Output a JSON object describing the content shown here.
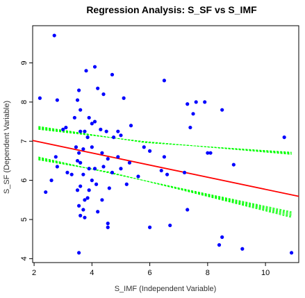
{
  "chart_data": {
    "type": "scatter",
    "title": "Regression Analysis: S_SF vs S_IMF",
    "xlabel": "S_IMF (Independent Variable)",
    "ylabel": "S_SF (Dependent Variable)",
    "xlim": [
      1.95,
      11.15
    ],
    "ylim": [
      3.9,
      9.95
    ],
    "xticks": [
      2,
      4,
      6,
      8,
      10
    ],
    "yticks": [
      4,
      5,
      6,
      7,
      8,
      9
    ],
    "grid": false,
    "colors": {
      "points": "#0000ff",
      "regression": "#ff0000",
      "bands": "#00ff00",
      "axes": "#000000"
    },
    "points": [
      [
        2.7,
        9.7
      ],
      [
        3.8,
        8.8
      ],
      [
        4.1,
        8.9
      ],
      [
        4.4,
        8.2
      ],
      [
        4.7,
        8.7
      ],
      [
        5.1,
        8.1
      ],
      [
        6.5,
        8.55
      ],
      [
        7.6,
        8.0
      ],
      [
        7.3,
        7.95
      ],
      [
        7.4,
        7.35
      ],
      [
        7.5,
        7.7
      ],
      [
        8.5,
        7.8
      ],
      [
        2.2,
        8.1
      ],
      [
        2.8,
        8.05
      ],
      [
        3.55,
        8.3
      ],
      [
        3.5,
        8.05
      ],
      [
        3.6,
        7.8
      ],
      [
        3.9,
        7.6
      ],
      [
        4.0,
        7.45
      ],
      [
        4.2,
        8.35
      ],
      [
        4.1,
        7.5
      ],
      [
        3.4,
        7.6
      ],
      [
        3.6,
        7.25
      ],
      [
        3.0,
        7.3
      ],
      [
        3.1,
        7.35
      ],
      [
        3.75,
        7.25
      ],
      [
        3.85,
        7.1
      ],
      [
        4.3,
        7.3
      ],
      [
        4.5,
        7.25
      ],
      [
        4.75,
        7.1
      ],
      [
        4.9,
        7.25
      ],
      [
        5.0,
        7.15
      ],
      [
        5.35,
        7.4
      ],
      [
        5.8,
        6.85
      ],
      [
        6.0,
        6.75
      ],
      [
        6.5,
        6.6
      ],
      [
        2.75,
        6.6
      ],
      [
        3.45,
        6.85
      ],
      [
        3.55,
        6.7
      ],
      [
        3.7,
        6.8
      ],
      [
        4.0,
        6.85
      ],
      [
        4.35,
        6.7
      ],
      [
        4.55,
        6.55
      ],
      [
        4.9,
        6.6
      ],
      [
        3.5,
        6.5
      ],
      [
        3.6,
        6.45
      ],
      [
        3.9,
        6.3
      ],
      [
        4.1,
        6.3
      ],
      [
        4.4,
        6.35
      ],
      [
        4.7,
        6.2
      ],
      [
        5.0,
        6.3
      ],
      [
        5.3,
        6.45
      ],
      [
        5.6,
        6.1
      ],
      [
        6.4,
        6.25
      ],
      [
        6.6,
        6.15
      ],
      [
        7.2,
        6.2
      ],
      [
        2.8,
        6.35
      ],
      [
        3.15,
        6.2
      ],
      [
        3.3,
        6.15
      ],
      [
        3.7,
        6.15
      ],
      [
        4.0,
        6.0
      ],
      [
        2.6,
        6.0
      ],
      [
        3.9,
        5.75
      ],
      [
        4.15,
        5.9
      ],
      [
        4.6,
        5.8
      ],
      [
        5.2,
        5.9
      ],
      [
        3.5,
        5.75
      ],
      [
        3.6,
        5.85
      ],
      [
        3.75,
        5.5
      ],
      [
        4.35,
        5.5
      ],
      [
        2.4,
        5.7
      ],
      [
        3.55,
        5.35
      ],
      [
        3.7,
        5.25
      ],
      [
        3.6,
        5.1
      ],
      [
        3.75,
        5.05
      ],
      [
        3.85,
        5.55
      ],
      [
        4.2,
        5.2
      ],
      [
        4.55,
        4.9
      ],
      [
        4.55,
        4.8
      ],
      [
        6.0,
        4.8
      ],
      [
        6.7,
        4.85
      ],
      [
        7.3,
        5.25
      ],
      [
        8.0,
        6.7
      ],
      [
        8.1,
        6.7
      ],
      [
        8.9,
        6.4
      ],
      [
        8.5,
        4.55
      ],
      [
        8.4,
        4.35
      ],
      [
        3.55,
        4.15
      ],
      [
        9.2,
        4.25
      ],
      [
        10.9,
        4.15
      ],
      [
        10.65,
        7.1
      ],
      [
        7.9,
        8.0
      ]
    ],
    "regression_line": {
      "intercept": 7.32,
      "slope": -0.155
    },
    "bands": {
      "upper": {
        "lines": 8,
        "y_at_xmin": [
          7.38,
          7.3
        ],
        "y_at_converge": 6.98,
        "converge_x": 5.8,
        "y_at_xmax": [
          6.72,
          6.66
        ]
      },
      "lower": {
        "lines": 8,
        "y_at_xmin": [
          6.6,
          6.52
        ],
        "y_at_converge": 6.2,
        "converge_x": 4.6,
        "y_at_xmax": [
          5.2,
          5.05
        ]
      }
    },
    "band_x_range": [
      2.15,
      10.9
    ]
  }
}
